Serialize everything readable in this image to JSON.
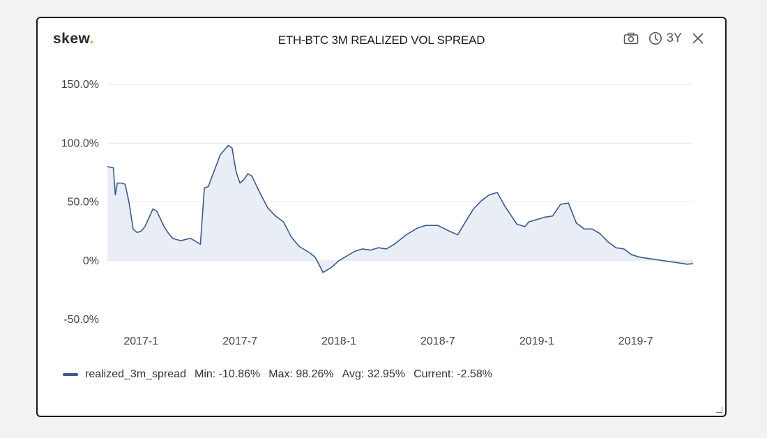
{
  "header": {
    "logo_text": "skew",
    "logo_dot": ".",
    "range_label": "3Y",
    "icons": [
      "camera-icon",
      "clock-icon",
      "close-icon"
    ]
  },
  "colors": {
    "line": "#3a5a8c",
    "fill": "#e9edf5",
    "grid": "#e6e6e6",
    "accent": "#f0a020"
  },
  "legend": {
    "series_name": "realized_3m_spread",
    "min": "Min: -10.86%",
    "max": "Max: 98.26%",
    "avg": "Avg: 32.95%",
    "current": "Current: -2.58%"
  },
  "chart_data": {
    "type": "area",
    "title": "ETH-BTC 3M REALIZED VOL SPREAD",
    "xlabel": "",
    "ylabel": "",
    "ylim": [
      -50,
      150
    ],
    "xlim": [
      2016.83,
      2019.79
    ],
    "grid": true,
    "y_ticks": [
      {
        "value": 150,
        "label": "150.0%"
      },
      {
        "value": 100,
        "label": "100.0%"
      },
      {
        "value": 50,
        "label": "50.0%"
      },
      {
        "value": 0,
        "label": "0%"
      },
      {
        "value": -50,
        "label": "-50.0%"
      }
    ],
    "x_ticks": [
      {
        "value": 2017.0,
        "label": "2017-1"
      },
      {
        "value": 2017.5,
        "label": "2017-7"
      },
      {
        "value": 2018.0,
        "label": "2018-1"
      },
      {
        "value": 2018.5,
        "label": "2018-7"
      },
      {
        "value": 2019.0,
        "label": "2019-1"
      },
      {
        "value": 2019.5,
        "label": "2019-7"
      }
    ],
    "series": [
      {
        "name": "realized_3m_spread",
        "x": [
          2016.83,
          2016.86,
          2016.87,
          2016.88,
          2016.9,
          2016.92,
          2016.94,
          2016.96,
          2016.98,
          2017.0,
          2017.02,
          2017.06,
          2017.08,
          2017.1,
          2017.12,
          2017.14,
          2017.16,
          2017.2,
          2017.25,
          2017.3,
          2017.32,
          2017.34,
          2017.36,
          2017.4,
          2017.44,
          2017.46,
          2017.48,
          2017.5,
          2017.52,
          2017.54,
          2017.56,
          2017.6,
          2017.64,
          2017.68,
          2017.72,
          2017.76,
          2017.8,
          2017.85,
          2017.88,
          2017.92,
          2017.96,
          2018.0,
          2018.02,
          2018.04,
          2018.08,
          2018.12,
          2018.16,
          2018.2,
          2018.24,
          2018.28,
          2018.34,
          2018.4,
          2018.44,
          2018.5,
          2018.56,
          2018.6,
          2018.64,
          2018.68,
          2018.72,
          2018.76,
          2018.8,
          2018.84,
          2018.9,
          2018.94,
          2018.96,
          2019.0,
          2019.04,
          2019.08,
          2019.12,
          2019.16,
          2019.2,
          2019.24,
          2019.28,
          2019.32,
          2019.36,
          2019.4,
          2019.44,
          2019.48,
          2019.52,
          2019.56,
          2019.6,
          2019.64,
          2019.68,
          2019.72,
          2019.76,
          2019.79
        ],
        "values": [
          80,
          79,
          56,
          66,
          66,
          65,
          49,
          27,
          24,
          25,
          29,
          44,
          42,
          35,
          28,
          23,
          19,
          17,
          19,
          14,
          62,
          63,
          72,
          90,
          98,
          96,
          76,
          66,
          69,
          74,
          72,
          58,
          45,
          38,
          33,
          20,
          12,
          7,
          3,
          -10,
          -6,
          0,
          2,
          4,
          8,
          10,
          9,
          11,
          10,
          14,
          22,
          28,
          30,
          30,
          25,
          22,
          33,
          44,
          51,
          56,
          58,
          46,
          31,
          29,
          33,
          35,
          37,
          38,
          48,
          49,
          32,
          27,
          27,
          23,
          16,
          11,
          10,
          5,
          3,
          2,
          1,
          0,
          -1,
          -2,
          -3,
          -2.58
        ]
      }
    ],
    "stats": {
      "min": -10.86,
      "max": 98.26,
      "avg": 32.95,
      "current": -2.58
    }
  }
}
